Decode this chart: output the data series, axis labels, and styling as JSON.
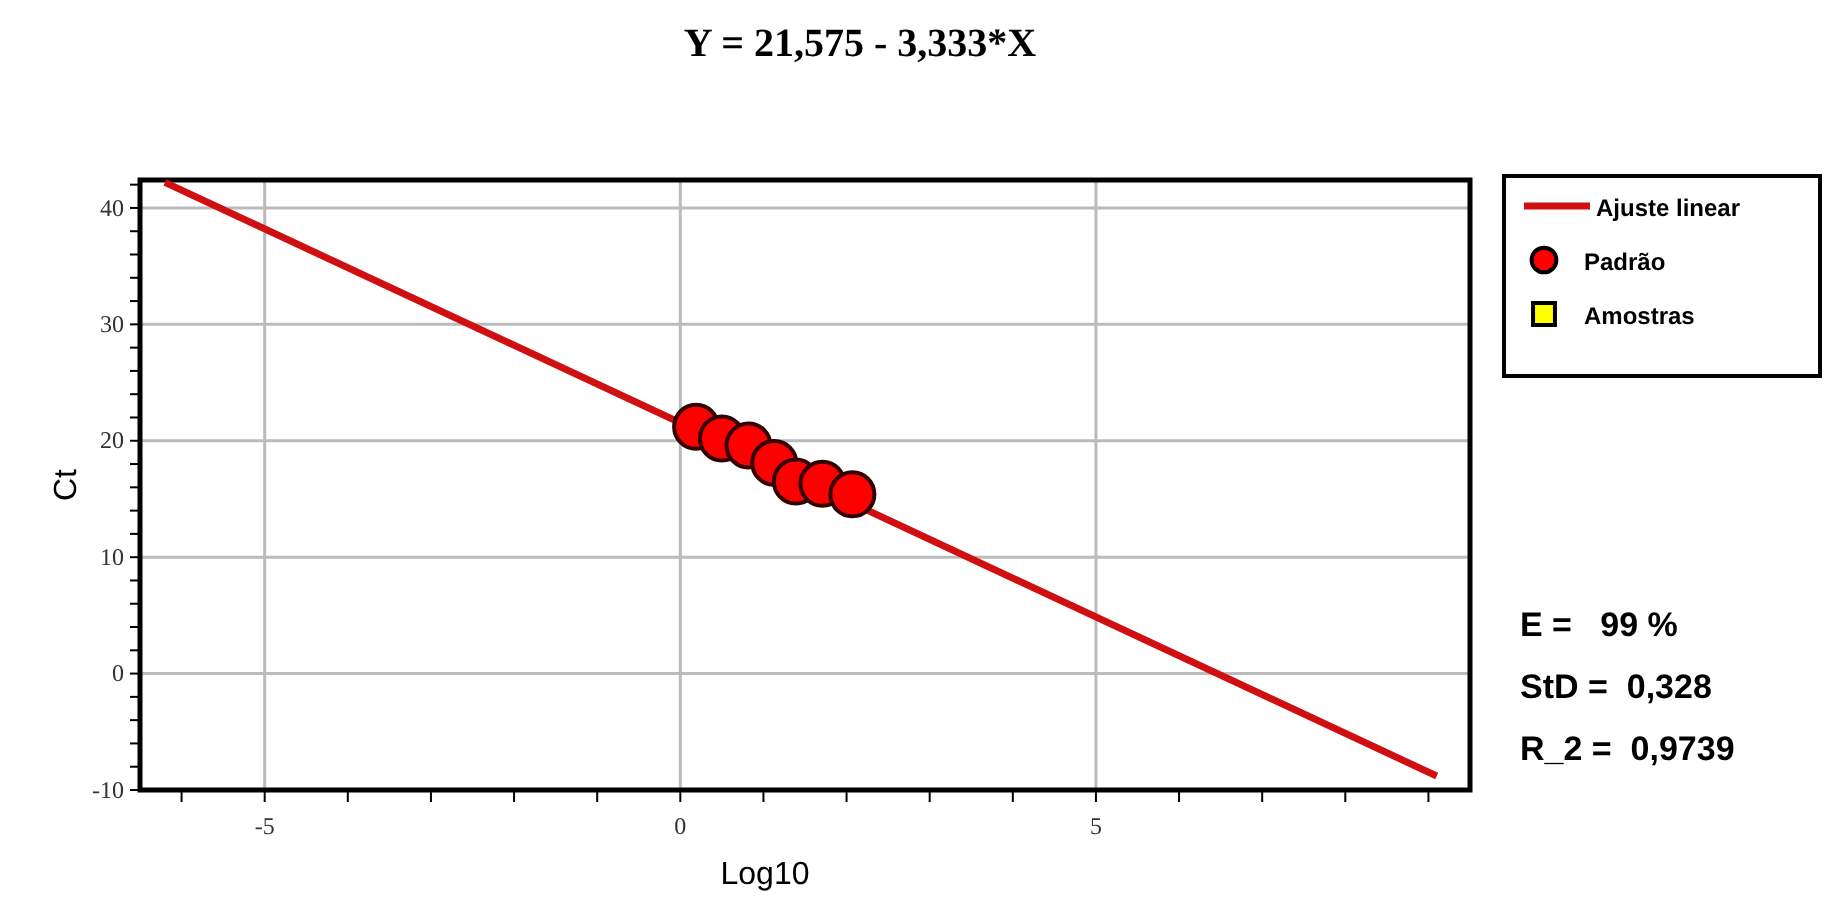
{
  "chart_data": {
    "type": "scatter",
    "title": "Y = 21,575 - 3,333*X",
    "xlabel": "Log10",
    "ylabel": "Ct",
    "xlim": [
      -6.5,
      9.5
    ],
    "ylim": [
      -10,
      42.4
    ],
    "xticks": [
      {
        "value": -6,
        "label": null
      },
      {
        "value": -5,
        "label": "-5"
      },
      {
        "value": -4,
        "label": null
      },
      {
        "value": -3,
        "label": null
      },
      {
        "value": -2,
        "label": null
      },
      {
        "value": -1,
        "label": null
      },
      {
        "value": 0,
        "label": "0"
      },
      {
        "value": 1,
        "label": null
      },
      {
        "value": 2,
        "label": null
      },
      {
        "value": 3,
        "label": null
      },
      {
        "value": 4,
        "label": null
      },
      {
        "value": 5,
        "label": "5"
      },
      {
        "value": 6,
        "label": null
      },
      {
        "value": 7,
        "label": null
      },
      {
        "value": 8,
        "label": null
      },
      {
        "value": 9,
        "label": null
      }
    ],
    "yticks": [
      {
        "value": -10,
        "label": "-10"
      },
      {
        "value": -8,
        "label": null
      },
      {
        "value": -6,
        "label": null
      },
      {
        "value": -4,
        "label": null
      },
      {
        "value": -2,
        "label": null
      },
      {
        "value": 0,
        "label": "0"
      },
      {
        "value": 2,
        "label": null
      },
      {
        "value": 4,
        "label": null
      },
      {
        "value": 6,
        "label": null
      },
      {
        "value": 8,
        "label": null
      },
      {
        "value": 10,
        "label": "10"
      },
      {
        "value": 12,
        "label": null
      },
      {
        "value": 14,
        "label": null
      },
      {
        "value": 16,
        "label": null
      },
      {
        "value": 18,
        "label": null
      },
      {
        "value": 20,
        "label": "20"
      },
      {
        "value": 22,
        "label": null
      },
      {
        "value": 24,
        "label": null
      },
      {
        "value": 26,
        "label": null
      },
      {
        "value": 28,
        "label": null
      },
      {
        "value": 30,
        "label": "30"
      },
      {
        "value": 32,
        "label": null
      },
      {
        "value": 34,
        "label": null
      },
      {
        "value": 36,
        "label": null
      },
      {
        "value": 38,
        "label": null
      },
      {
        "value": 40,
        "label": "40"
      },
      {
        "value": 42,
        "label": null
      }
    ],
    "grid": true,
    "legend": "top right",
    "series": [
      {
        "name": "Ajuste linear",
        "type": "line",
        "color": "#d01010",
        "line_style": "solid",
        "marker": "none",
        "x": [
          -6.2,
          9.1
        ],
        "values": [
          42.2,
          -8.8
        ]
      },
      {
        "name": "Padrão",
        "color": "#ff0000",
        "marker": "circle",
        "x": [
          0.19,
          0.5,
          0.82,
          1.13,
          1.39,
          1.71,
          2.07
        ],
        "values": [
          21.2,
          20.2,
          19.6,
          18.1,
          16.5,
          16.3,
          15.4
        ]
      },
      {
        "name": "Amostras",
        "color": "#ffff00",
        "marker": "square"
      }
    ],
    "annotations": [
      "E =   99 %",
      "StD =  0,328",
      "R_2 =  0,9739"
    ]
  }
}
